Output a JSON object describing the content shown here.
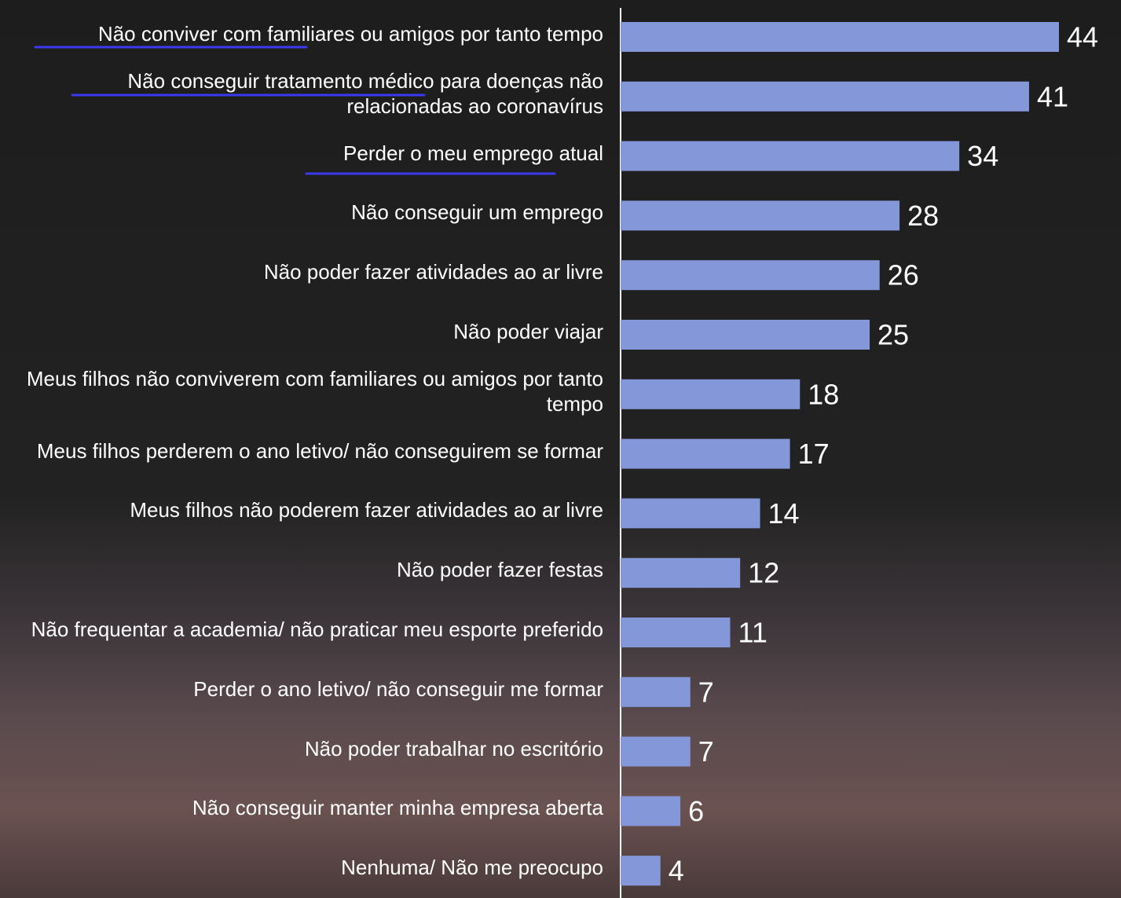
{
  "chart_data": {
    "type": "bar",
    "orientation": "horizontal",
    "categories": [
      "Não conviver com familiares ou amigos por tanto tempo",
      "Não conseguir tratamento médico para doenças não relacionadas ao coronavírus",
      "Perder o meu emprego atual",
      "Não conseguir um emprego",
      "Não poder fazer atividades ao ar livre",
      "Não poder viajar",
      "Meus filhos não conviverem com familiares ou amigos por tanto tempo",
      "Meus filhos perderem o ano letivo/ não conseguirem se formar",
      "Meus filhos não poderem fazer atividades ao ar livre",
      "Não poder fazer festas",
      "Não frequentar a academia/ não praticar meu esporte preferido",
      "Perder o ano letivo/ não conseguir me formar",
      "Não poder trabalhar no escritório",
      "Não conseguir manter minha empresa aberta",
      "Nenhuma/ Não me preocupo"
    ],
    "values": [
      44,
      41,
      34,
      28,
      26,
      25,
      18,
      17,
      14,
      12,
      11,
      7,
      7,
      6,
      4
    ],
    "color": "#8497d8"
  }
}
